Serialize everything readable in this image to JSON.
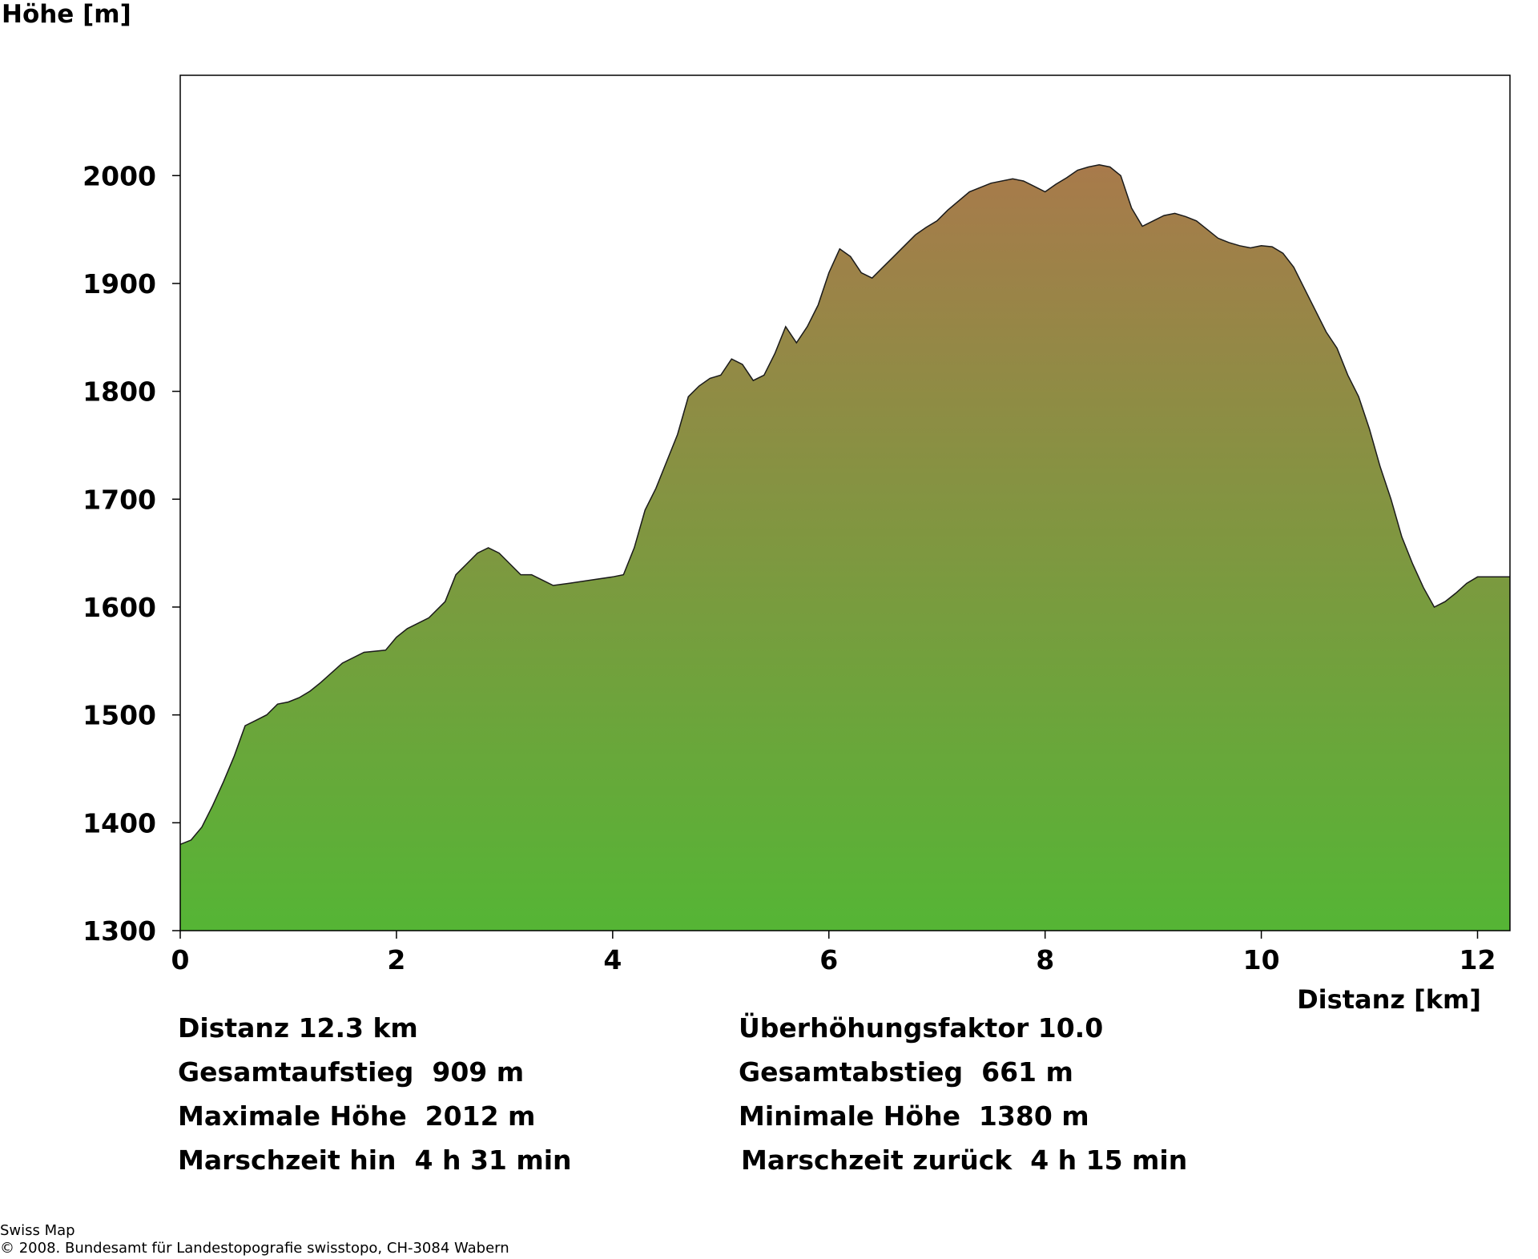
{
  "chart_data": {
    "type": "area",
    "ylabel": "Höhe [m]",
    "xlabel": "Distanz [km]",
    "xlim": [
      0,
      12.3
    ],
    "ylim": [
      1300,
      2093
    ],
    "x_ticks": [
      "0",
      "2",
      "4",
      "6",
      "8",
      "10",
      "12"
    ],
    "y_ticks": [
      "1300",
      "1400",
      "1500",
      "1600",
      "1700",
      "1800",
      "1900",
      "2000"
    ],
    "grid": false,
    "colors": {
      "top": "#a87a4b",
      "bottom": "#55b535",
      "stroke": "#1a1a1a"
    },
    "series": [
      {
        "x": [
          0,
          0.1,
          0.2,
          0.3,
          0.4,
          0.5,
          0.6,
          0.7,
          0.8,
          0.9,
          1.0,
          1.1,
          1.2,
          1.3,
          1.5,
          1.7,
          1.9,
          2.0,
          2.1,
          2.3,
          2.45,
          2.55,
          2.65,
          2.75,
          2.85,
          2.95,
          3.05,
          3.15,
          3.25,
          3.35,
          3.45,
          3.6,
          3.8,
          4.0,
          4.1,
          4.2,
          4.3,
          4.4,
          4.5,
          4.6,
          4.7,
          4.8,
          4.9,
          5.0,
          5.1,
          5.2,
          5.3,
          5.4,
          5.5,
          5.6,
          5.7,
          5.8,
          5.9,
          6.0,
          6.1,
          6.2,
          6.3,
          6.4,
          6.5,
          6.6,
          6.7,
          6.8,
          6.9,
          7.0,
          7.1,
          7.3,
          7.5,
          7.7,
          7.8,
          7.9,
          8.0,
          8.1,
          8.2,
          8.3,
          8.4,
          8.5,
          8.6,
          8.7,
          8.8,
          8.9,
          9.0,
          9.1,
          9.2,
          9.3,
          9.4,
          9.5,
          9.6,
          9.7,
          9.8,
          9.9,
          10.0,
          10.1,
          10.2,
          10.3,
          10.4,
          10.5,
          10.6,
          10.7,
          10.8,
          10.9,
          11.0,
          11.1,
          11.2,
          11.3,
          11.4,
          11.5,
          11.6,
          11.7,
          11.8,
          11.9,
          12.0,
          12.1,
          12.2,
          12.3
        ],
        "y": [
          1380,
          1384,
          1396,
          1416,
          1438,
          1462,
          1490,
          1495,
          1500,
          1510,
          1512,
          1516,
          1522,
          1530,
          1548,
          1558,
          1560,
          1572,
          1580,
          1590,
          1605,
          1630,
          1640,
          1650,
          1655,
          1650,
          1640,
          1630,
          1630,
          1625,
          1620,
          1622,
          1625,
          1628,
          1630,
          1655,
          1690,
          1710,
          1735,
          1760,
          1795,
          1805,
          1812,
          1815,
          1830,
          1825,
          1810,
          1815,
          1835,
          1860,
          1845,
          1860,
          1880,
          1910,
          1932,
          1925,
          1910,
          1905,
          1915,
          1925,
          1935,
          1945,
          1952,
          1958,
          1968,
          1985,
          1993,
          1997,
          1995,
          1990,
          1985,
          1992,
          1998,
          2005,
          2008,
          2010,
          2008,
          2000,
          1970,
          1953,
          1958,
          1963,
          1965,
          1962,
          1958,
          1950,
          1942,
          1938,
          1935,
          1933,
          1935,
          1934,
          1928,
          1915,
          1895,
          1875,
          1855,
          1840,
          1815,
          1795,
          1765,
          1730,
          1700,
          1665,
          1640,
          1618,
          1600,
          1605,
          1613,
          1622,
          1628,
          1628,
          1628,
          1628
        ]
      }
    ]
  },
  "stats": {
    "distanz": "Distanz 12.3 km",
    "ueberhoehung": "Überhöhungsfaktor 10.0",
    "aufstieg": "Gesamtaufstieg  909 m",
    "abstieg": "Gesamtabstieg  661 m",
    "max_hoehe": "Maximale Höhe  2012 m",
    "min_hoehe": "Minimale Höhe  1380 m",
    "marschzeit_hin": "Marschzeit hin  4 h 31 min",
    "marschzeit_zurueck": "Marschzeit zurück  4 h 15 min"
  },
  "footer": {
    "line1": "Swiss Map",
    "line2": "© 2008. Bundesamt für Landestopografie swisstopo, CH-3084 Wabern"
  }
}
